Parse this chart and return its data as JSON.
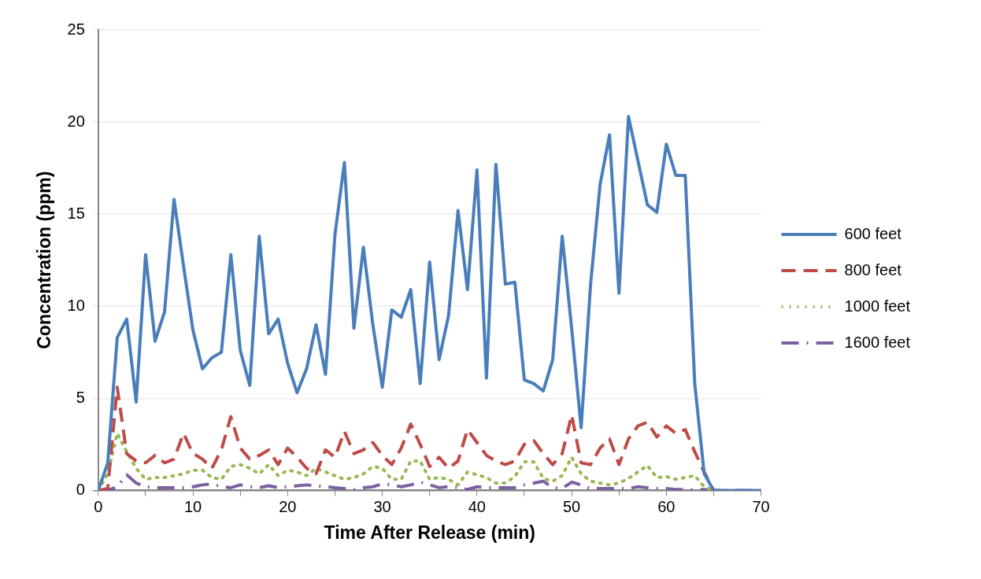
{
  "chart_data": {
    "type": "line",
    "xlabel": "Time After Release (min)",
    "ylabel": "Concentration (ppm)",
    "x": [
      0,
      1,
      2,
      3,
      4,
      5,
      6,
      7,
      8,
      9,
      10,
      11,
      12,
      13,
      14,
      15,
      16,
      17,
      18,
      19,
      20,
      21,
      22,
      23,
      24,
      25,
      26,
      27,
      28,
      29,
      30,
      31,
      32,
      33,
      34,
      35,
      36,
      37,
      38,
      39,
      40,
      41,
      42,
      43,
      44,
      45,
      46,
      47,
      48,
      49,
      50,
      51,
      52,
      53,
      54,
      55,
      56,
      57,
      58,
      59,
      60,
      61,
      62,
      63,
      64,
      65,
      66,
      67,
      68,
      69,
      70
    ],
    "series": [
      {
        "name": "600 feet",
        "color": "#4a7ebb",
        "line_style": "solid",
        "values": [
          0,
          1.5,
          8.3,
          9.3,
          4.8,
          12.8,
          8.1,
          9.7,
          15.8,
          12.2,
          8.7,
          6.6,
          7.2,
          7.5,
          12.8,
          7.6,
          5.7,
          13.8,
          8.5,
          9.3,
          6.9,
          5.3,
          6.6,
          9.0,
          6.3,
          13.9,
          17.8,
          8.8,
          13.2,
          9.0,
          5.6,
          9.8,
          9.4,
          10.9,
          5.8,
          12.4,
          7.1,
          9.5,
          15.2,
          10.9,
          17.4,
          6.1,
          17.7,
          11.2,
          11.3,
          6.0,
          5.8,
          5.4,
          7.1,
          13.8,
          8.8,
          3.4,
          11.2,
          16.6,
          19.3,
          10.7,
          20.3,
          17.9,
          15.5,
          15.1,
          18.8,
          17.1,
          17.1,
          5.8,
          0.9,
          0,
          0,
          0,
          0,
          0,
          0
        ]
      },
      {
        "name": "800 feet",
        "color": "#be4b48",
        "line_style": "dashed",
        "values": [
          0,
          0.1,
          5.6,
          2.0,
          1.6,
          1.5,
          1.9,
          1.5,
          1.7,
          3.1,
          2.0,
          1.7,
          1.2,
          2.2,
          4.0,
          2.3,
          1.7,
          1.9,
          2.2,
          1.4,
          2.3,
          1.8,
          1.2,
          0.9,
          2.2,
          1.8,
          3.2,
          2.0,
          2.2,
          2.6,
          1.9,
          1.4,
          2.3,
          3.6,
          2.5,
          1.3,
          1.8,
          1.2,
          1.6,
          3.3,
          2.6,
          1.9,
          1.6,
          1.4,
          1.6,
          2.5,
          2.7,
          2.0,
          1.4,
          2.0,
          4.1,
          1.5,
          1.4,
          2.3,
          2.8,
          1.4,
          2.8,
          3.5,
          3.7,
          2.9,
          3.5,
          3.1,
          3.3,
          2.1,
          1.0,
          0,
          0,
          null,
          null,
          null,
          null
        ]
      },
      {
        "name": "1000 feet",
        "color": "#98b954",
        "line_style": "dotted",
        "values": [
          0,
          0.9,
          3.1,
          2.1,
          1.2,
          0.6,
          0.7,
          0.7,
          0.8,
          0.9,
          1.1,
          1.1,
          0.7,
          0.6,
          1.3,
          1.4,
          1.2,
          0.9,
          1.4,
          0.8,
          1.1,
          1.0,
          0.8,
          1.2,
          1.0,
          0.8,
          0.6,
          0.7,
          0.9,
          1.3,
          1.2,
          0.6,
          0.6,
          1.6,
          1.6,
          0.6,
          0.7,
          0.6,
          0.3,
          1.0,
          0.85,
          0.7,
          0.4,
          0.4,
          0.75,
          1.55,
          1.55,
          0.65,
          0.5,
          0.8,
          1.8,
          0.9,
          0.5,
          0.4,
          0.3,
          0.4,
          0.65,
          1.0,
          1.35,
          0.7,
          0.75,
          0.6,
          0.7,
          0.8,
          0.2,
          0,
          0,
          null,
          null,
          null,
          null
        ]
      },
      {
        "name": "1600 feet",
        "color": "#7d60a0",
        "line_style": "dashdot",
        "values": [
          0,
          0,
          0.2,
          0.85,
          0.4,
          0.2,
          0.15,
          0.15,
          0.15,
          0.15,
          0.2,
          0.3,
          0.35,
          0.2,
          0.15,
          0.3,
          0.2,
          0.15,
          0.25,
          0.15,
          0.2,
          0.25,
          0.3,
          0.25,
          0.2,
          0.15,
          0.1,
          0.05,
          0.15,
          0.2,
          0.35,
          0.3,
          0.2,
          0.3,
          0.45,
          0.3,
          0.15,
          0.2,
          0.15,
          0.05,
          0.2,
          0.15,
          0.15,
          0.15,
          0.15,
          0.3,
          0.4,
          0.5,
          0.15,
          0.1,
          0.45,
          0.3,
          0.1,
          0.1,
          0.1,
          0.1,
          0.1,
          0.2,
          0.15,
          0.1,
          0.1,
          0.05,
          0.05,
          0.05,
          0.05,
          0,
          0,
          0,
          0,
          0,
          0
        ]
      }
    ],
    "xlim": [
      0,
      70
    ],
    "xticks": [
      0,
      {
        "value": 5,
        "label": null
      },
      10,
      {
        "value": 15,
        "label": null
      },
      20,
      {
        "value": 25,
        "label": null
      },
      30,
      {
        "value": 35,
        "label": null
      },
      40,
      {
        "value": 45,
        "label": null
      },
      50,
      {
        "value": 55,
        "label": null
      },
      60,
      {
        "value": 65,
        "label": null
      },
      70
    ],
    "ylim": [
      0,
      25
    ],
    "yticks": [
      0,
      5,
      10,
      15,
      20,
      25
    ],
    "grid": "y",
    "legend": "right",
    "marker": "none"
  }
}
